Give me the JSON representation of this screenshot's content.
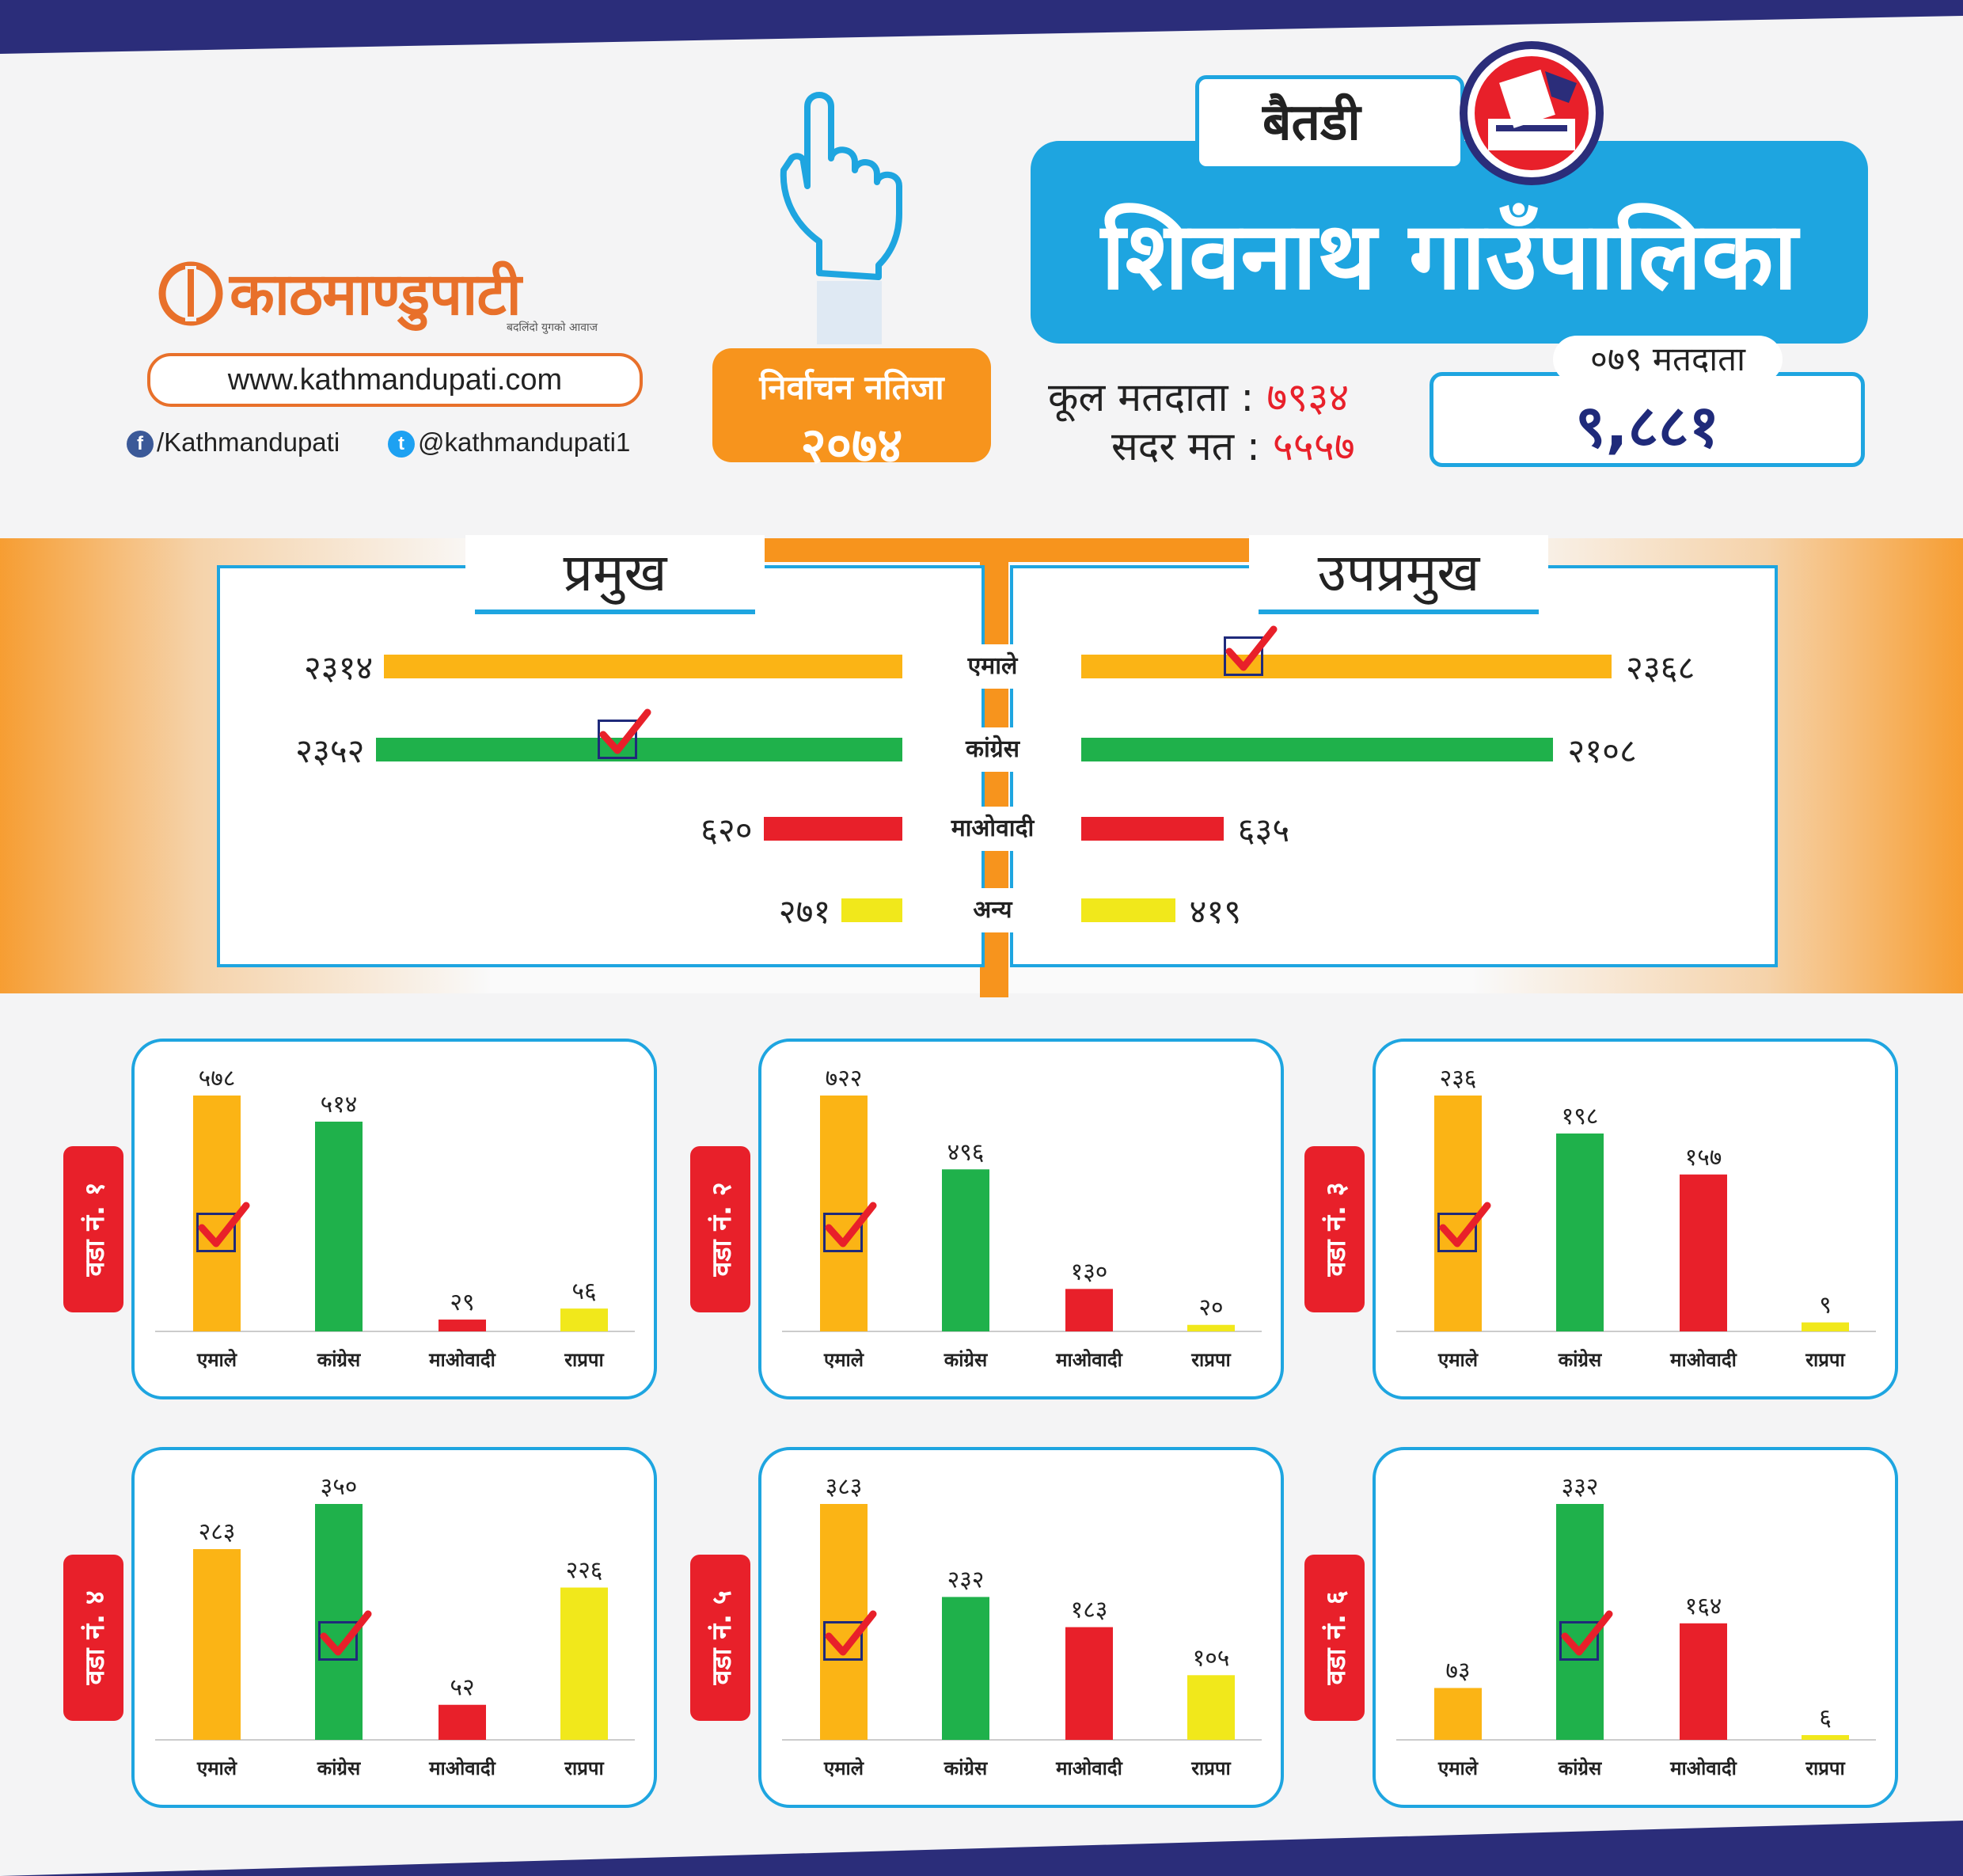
{
  "brand": {
    "logo_text": "काठमाण्डुपाटी",
    "tagline": "बदलिंदो युगको आवाज",
    "url": "www.kathmandupati.com",
    "facebook": "/Kathmandupati",
    "twitter": "@kathmandupati1"
  },
  "header": {
    "badge_line1": "निर्वाचन नतिजा",
    "badge_line2": "२०७४",
    "district": "बैतडी",
    "municipality": "शिवनाथ  गाउँपालिका",
    "total_voters_label": "कूल मतदाता :",
    "total_voters_value": "७९३४",
    "valid_votes_label": "सदर मत :",
    "valid_votes_value": "५५५७",
    "voters079_label": "०७९ मतदाता",
    "voters079_value": "९,८८१"
  },
  "colors": {
    "uml": "#fbb415",
    "congress": "#1fb14b",
    "maoist": "#e8202a",
    "other": "#f1e81b",
    "accent": "#1ea5e0",
    "orange": "#f7941d",
    "navy": "#2b2d7a"
  },
  "chart_data": [
    {
      "type": "bar",
      "title": "प्रमुख",
      "categories": [
        "एमाले",
        "कांग्रेस",
        "माओवादी",
        "अन्य"
      ],
      "values": [
        2314,
        2352,
        620,
        271
      ],
      "value_labels": [
        "२३१४",
        "२३५२",
        "६२०",
        "२७१"
      ],
      "winner": "कांग्रेस"
    },
    {
      "type": "bar",
      "title": "उपप्रमुख",
      "categories": [
        "एमाले",
        "कांग्रेस",
        "माओवादी",
        "अन्य"
      ],
      "values": [
        2368,
        2108,
        635,
        419
      ],
      "value_labels": [
        "२३६८",
        "२१०८",
        "६३५",
        "४१९"
      ],
      "winner": "एमाले"
    },
    {
      "type": "bar",
      "title": "वडा नं. १",
      "categories": [
        "एमाले",
        "कांग्रेस",
        "माओवादी",
        "राप्रपा"
      ],
      "values": [
        578,
        514,
        29,
        56
      ],
      "value_labels": [
        "५७८",
        "५१४",
        "२९",
        "५६"
      ],
      "winner": "एमाले"
    },
    {
      "type": "bar",
      "title": "वडा नं. २",
      "categories": [
        "एमाले",
        "कांग्रेस",
        "माओवादी",
        "राप्रपा"
      ],
      "values": [
        722,
        496,
        130,
        20
      ],
      "value_labels": [
        "७२२",
        "४९६",
        "१३०",
        "२०"
      ],
      "winner": "एमाले"
    },
    {
      "type": "bar",
      "title": "वडा नं. ३",
      "categories": [
        "एमाले",
        "कांग्रेस",
        "माओवादी",
        "राप्रपा"
      ],
      "values": [
        236,
        198,
        157,
        9
      ],
      "value_labels": [
        "२३६",
        "१९८",
        "१५७",
        "९"
      ],
      "winner": "एमाले"
    },
    {
      "type": "bar",
      "title": "वडा नं. ४",
      "categories": [
        "एमाले",
        "कांग्रेस",
        "माओवादी",
        "राप्रपा"
      ],
      "values": [
        283,
        350,
        52,
        226
      ],
      "value_labels": [
        "२८३",
        "३५०",
        "५२",
        "२२६"
      ],
      "winner": "कांग्रेस"
    },
    {
      "type": "bar",
      "title": "वडा नं. ५",
      "categories": [
        "एमाले",
        "कांग्रेस",
        "माओवादी",
        "राप्रपा"
      ],
      "values": [
        383,
        232,
        183,
        105
      ],
      "value_labels": [
        "३८३",
        "२३२",
        "१८३",
        "१०५"
      ],
      "winner": "एमाले"
    },
    {
      "type": "bar",
      "title": "वडा नं. ६",
      "categories": [
        "एमाले",
        "कांग्रेस",
        "माओवादी",
        "राप्रपा"
      ],
      "values": [
        73,
        332,
        164,
        6
      ],
      "value_labels": [
        "७३",
        "३३२",
        "१६४",
        "६"
      ],
      "winner": "कांग्रेस"
    }
  ]
}
